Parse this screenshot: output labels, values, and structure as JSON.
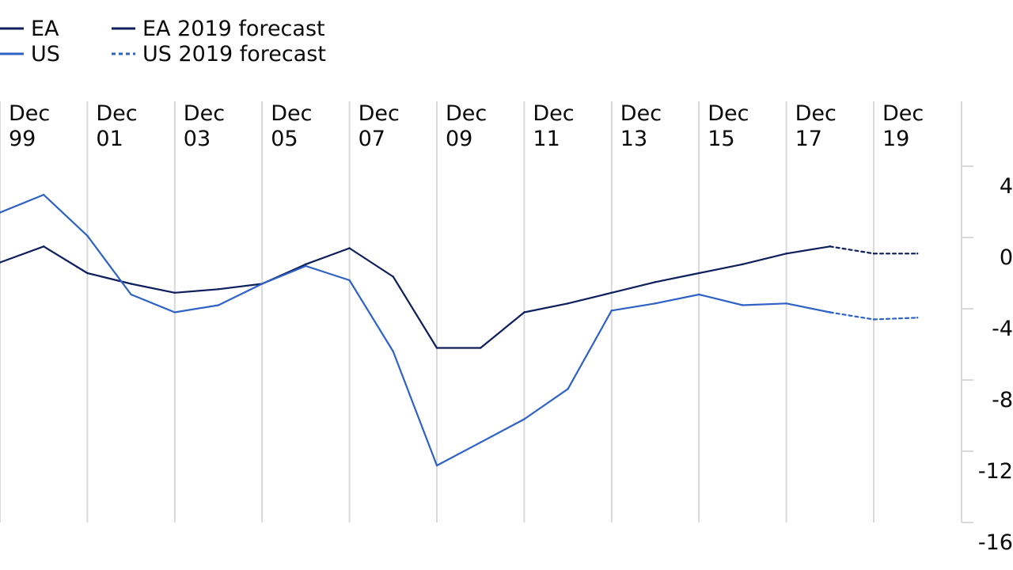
{
  "chart_data": {
    "type": "line",
    "x_ticks": [
      {
        "top": "Dec",
        "bottom": "99"
      },
      {
        "top": "Dec",
        "bottom": "01"
      },
      {
        "top": "Dec",
        "bottom": "03"
      },
      {
        "top": "Dec",
        "bottom": "05"
      },
      {
        "top": "Dec",
        "bottom": "07"
      },
      {
        "top": "Dec",
        "bottom": "09"
      },
      {
        "top": "Dec",
        "bottom": "11"
      },
      {
        "top": "Dec",
        "bottom": "13"
      },
      {
        "top": "Dec",
        "bottom": "15"
      },
      {
        "top": "Dec",
        "bottom": "17"
      },
      {
        "top": "Dec",
        "bottom": "19"
      }
    ],
    "x_range": [
      1999,
      2021
    ],
    "y_ticks": [
      4,
      0,
      -4,
      -8,
      -12,
      -16
    ],
    "y_tick_labels": [
      "4",
      "0",
      "-4",
      "-8",
      "-12",
      "-16"
    ],
    "ylim": [
      -16,
      4
    ],
    "y_axis_side": "right",
    "grid": "vertical",
    "legend_position": "top-left",
    "x": [
      1999,
      2000,
      2001,
      2002,
      2003,
      2004,
      2005,
      2006,
      2007,
      2008,
      2009,
      2010,
      2011,
      2012,
      2013,
      2014,
      2015,
      2016,
      2017,
      2018,
      2019,
      2020
    ],
    "series": [
      {
        "name": "EA",
        "key": "ea",
        "color": "#0d1f5c",
        "style": "solid",
        "values": [
          -1.4,
          -0.5,
          -2.0,
          -2.6,
          -3.1,
          -2.9,
          -2.6,
          -1.5,
          -0.6,
          -2.2,
          -6.2,
          -6.2,
          -4.2,
          -3.7,
          -3.1,
          -2.5,
          -2.0,
          -1.5,
          -0.9,
          -0.5,
          null,
          null
        ]
      },
      {
        "name": "US",
        "key": "us",
        "color": "#2e62c6",
        "style": "solid",
        "values": [
          1.4,
          2.4,
          0.1,
          -3.2,
          -4.2,
          -3.8,
          -2.6,
          -1.6,
          -2.4,
          -6.4,
          -12.8,
          -11.5,
          -10.2,
          -8.5,
          -4.1,
          -3.7,
          -3.2,
          -3.8,
          -3.7,
          -4.2,
          null,
          null
        ]
      },
      {
        "name": "EA 2019 forecast",
        "key": "ea_forecast",
        "color": "#0d1f5c",
        "style": "dashed",
        "values": [
          null,
          null,
          null,
          null,
          null,
          null,
          null,
          null,
          null,
          null,
          null,
          null,
          null,
          null,
          null,
          null,
          null,
          null,
          null,
          -0.5,
          -0.9,
          -0.9
        ]
      },
      {
        "name": "US 2019 forecast",
        "key": "us_forecast",
        "color": "#2e62c6",
        "style": "dashed",
        "values": [
          null,
          null,
          null,
          null,
          null,
          null,
          null,
          null,
          null,
          null,
          null,
          null,
          null,
          null,
          null,
          null,
          null,
          null,
          null,
          -4.2,
          -4.6,
          -4.5
        ]
      }
    ]
  }
}
